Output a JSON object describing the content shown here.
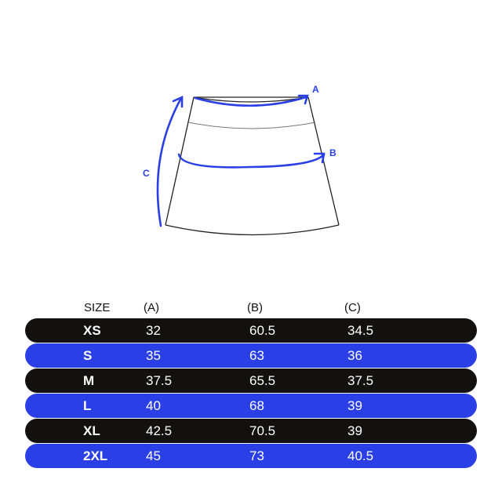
{
  "diagram": {
    "labels": {
      "a": "A",
      "b": "B",
      "c": "C"
    },
    "accent_color": "#2a3fe6"
  },
  "table": {
    "headers": [
      "SIZE",
      "(A)",
      "(B)",
      "(C)"
    ],
    "rows": [
      {
        "size": "XS",
        "a": "32",
        "b": "60.5",
        "c": "34.5",
        "color": "#131010"
      },
      {
        "size": "S",
        "a": "35",
        "b": "63",
        "c": "36",
        "color": "#2a3fe6"
      },
      {
        "size": "M",
        "a": "37.5",
        "b": "65.5",
        "c": "37.5",
        "color": "#131010"
      },
      {
        "size": "L",
        "a": "40",
        "b": "68",
        "c": "39",
        "color": "#2a3fe6"
      },
      {
        "size": "XL",
        "a": "42.5",
        "b": "70.5",
        "c": "39",
        "color": "#131010"
      },
      {
        "size": "2XL",
        "a": "45",
        "b": "73",
        "c": "40.5",
        "color": "#2a3fe6"
      }
    ]
  }
}
